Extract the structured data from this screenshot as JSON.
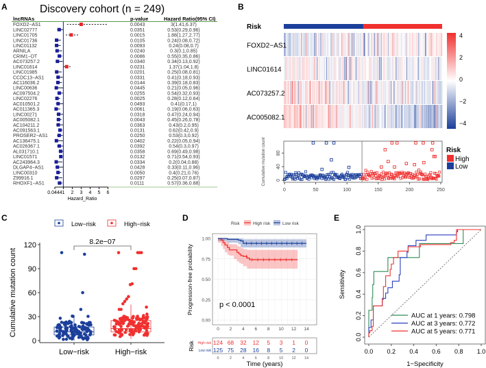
{
  "chart_data": [
    {
      "panel": "A",
      "type": "forest",
      "title": "Discovery cohort (n = 249)",
      "headers": {
        "name": "lncRNAs",
        "p": "p-value",
        "hr": "Hazard Ratio(95% CI)"
      },
      "xlabel": "Hazard_Ratio",
      "xticks": [
        "0.0444",
        "1",
        "2",
        "3",
        "4",
        "5",
        "6"
      ],
      "xtick_values": [
        0.0444,
        1,
        2,
        3,
        4,
        5,
        6
      ],
      "xlim": [
        0.0444,
        6
      ],
      "reference_line": 1,
      "colors": {
        "risk": "#e8262a",
        "protective": "#1a1f9c",
        "ref": "#2b3bbf",
        "rule": "#5a9a4a"
      },
      "rows": [
        {
          "name": "FOXD2−AS1",
          "p": "0.0043",
          "hr_text": "3(1.41,6.37)",
          "hr": 3,
          "lo": 1.41,
          "hi": 6.37
        },
        {
          "name": "LINC02777",
          "p": "0.0351",
          "hr_text": "0.53(0.29,0.96)",
          "hr": 0.53,
          "lo": 0.29,
          "hi": 0.96
        },
        {
          "name": "LINC01705",
          "p": "0.0015",
          "hr_text": "1.88(1.27,2.77)",
          "hr": 1.88,
          "lo": 1.27,
          "hi": 2.77
        },
        {
          "name": "LINC01736",
          "p": "0.0105",
          "hr_text": "0.24(0.08,0.72)",
          "hr": 0.24,
          "lo": 0.08,
          "hi": 0.72
        },
        {
          "name": "LINC01132",
          "p": "0.0093",
          "hr_text": "0.24(0.08,0.7)",
          "hr": 0.24,
          "lo": 0.08,
          "hi": 0.7
        },
        {
          "name": "ARNILA",
          "p": "0.0240",
          "hr_text": "0.3(0.1,0.85)",
          "hr": 0.3,
          "lo": 0.1,
          "hi": 0.85
        },
        {
          "name": "CRIM1−DT",
          "p": "0.0086",
          "hr_text": "0.55(0.35,0.86)",
          "hr": 0.55,
          "lo": 0.35,
          "hi": 0.86
        },
        {
          "name": "AC073257.2",
          "p": "0.0340",
          "hr_text": "0.34(0.13,0.92)",
          "hr": 0.34,
          "lo": 0.13,
          "hi": 0.92
        },
        {
          "name": "LINC01614",
          "p": "0.0231",
          "hr_text": "1.37(1.04,1.8)",
          "hr": 1.37,
          "lo": 1.04,
          "hi": 1.8
        },
        {
          "name": "LINC01985",
          "p": "0.0201",
          "hr_text": "0.25(0.08,0.81)",
          "hr": 0.25,
          "lo": 0.08,
          "hi": 0.81
        },
        {
          "name": "CCDC13−AS1",
          "p": "0.0331",
          "hr_text": "0.41(0.18,0.93)",
          "hr": 0.41,
          "lo": 0.18,
          "hi": 0.93
        },
        {
          "name": "AC116036.2",
          "p": "0.0144",
          "hr_text": "0.39(0.18,0.83)",
          "hr": 0.39,
          "lo": 0.18,
          "hi": 0.83
        },
        {
          "name": "LINC00636",
          "p": "0.0445",
          "hr_text": "0.21(0.05,0.96)",
          "hr": 0.21,
          "lo": 0.05,
          "hi": 0.96
        },
        {
          "name": "AC097504.2",
          "p": "0.0255",
          "hr_text": "0.54(0.32,0.93)",
          "hr": 0.54,
          "lo": 0.32,
          "hi": 0.93
        },
        {
          "name": "LINC02276",
          "p": "0.0025",
          "hr_text": "0.28(0.12,0.64)",
          "hr": 0.28,
          "lo": 0.12,
          "hi": 0.64
        },
        {
          "name": "AC010501.2",
          "p": "0.0493",
          "hr_text": "0.41(0.17,1)",
          "hr": 0.41,
          "lo": 0.17,
          "hi": 1
        },
        {
          "name": "AC011365.3",
          "p": "0.0061",
          "hr_text": "0.19(0.06,0.63)",
          "hr": 0.19,
          "lo": 0.06,
          "hi": 0.63
        },
        {
          "name": "LINC00271",
          "p": "0.0318",
          "hr_text": "0.47(0.24,0.94)",
          "hr": 0.47,
          "lo": 0.24,
          "hi": 0.94
        },
        {
          "name": "AC005082.1",
          "p": "0.0043",
          "hr_text": "0.45(0.26,0.78)",
          "hr": 0.45,
          "lo": 0.26,
          "hi": 0.78
        },
        {
          "name": "AC104211.2",
          "p": "0.0363",
          "hr_text": "0.43(0.2,0.95)",
          "hr": 0.43,
          "lo": 0.2,
          "hi": 0.95
        },
        {
          "name": "AC091563.1",
          "p": "0.0131",
          "hr_text": "0.62(0.42,0.9)",
          "hr": 0.62,
          "lo": 0.42,
          "hi": 0.9
        },
        {
          "name": "PROSER2−AS1",
          "p": "0.0250",
          "hr_text": "0.53(0.3,0.92)",
          "hr": 0.53,
          "lo": 0.3,
          "hi": 0.92
        },
        {
          "name": "AC136475.1",
          "p": "0.0402",
          "hr_text": "0.22(0.05,0.94)",
          "hr": 0.22,
          "lo": 0.05,
          "hi": 0.94
        },
        {
          "name": "AC026367.1",
          "p": "0.0392",
          "hr_text": "0.54(0.3,0.97)",
          "hr": 0.54,
          "lo": 0.3,
          "hi": 0.97
        },
        {
          "name": "AL031710.1",
          "p": "0.0358",
          "hr_text": "0.69(0.49,0.98)",
          "hr": 0.69,
          "lo": 0.49,
          "hi": 0.98
        },
        {
          "name": "LINC01571",
          "p": "0.0132",
          "hr_text": "0.71(0.54,0.93)",
          "hr": 0.71,
          "lo": 0.54,
          "hi": 0.93
        },
        {
          "name": "AC243964.3",
          "p": "0.0334",
          "hr_text": "0.2(0.04,0.88)",
          "hr": 0.2,
          "lo": 0.04,
          "hi": 0.88
        },
        {
          "name": "DLGAP4−AS1",
          "p": "0.0428",
          "hr_text": "0.33(0.11,0.96)",
          "hr": 0.33,
          "lo": 0.11,
          "hi": 0.96
        },
        {
          "name": "LINC00310",
          "p": "0.0050",
          "hr_text": "0.4(0.21,0.76)",
          "hr": 0.4,
          "lo": 0.21,
          "hi": 0.76
        },
        {
          "name": "Z99916.1",
          "p": "0.0297",
          "hr_text": "0.25(0.07,0.87)",
          "hr": 0.25,
          "lo": 0.07,
          "hi": 0.87
        },
        {
          "name": "RHOXF1−AS1",
          "p": "0.0111",
          "hr_text": "0.57(0.36,0.88)",
          "hr": 0.57,
          "lo": 0.36,
          "hi": 0.88
        }
      ]
    },
    {
      "panel": "B",
      "type": "heatmap",
      "annotation_label": "Risk",
      "rows": [
        "FOXD2−AS1",
        "LINC01614",
        "AC073257.2",
        "AC005082.1"
      ],
      "n_samples": 249,
      "low_risk_count": 125,
      "high_risk_count": 124,
      "colorbar_ticks": [
        "4",
        "2",
        "0",
        "−2",
        "−4"
      ],
      "colorbar_range": [
        -4,
        4
      ],
      "colors": {
        "high": "#f0302f",
        "low": "#1b3f9a",
        "mid": "#ffffff"
      },
      "row_trend": [
        {
          "name": "FOXD2−AS1",
          "low_group_mean": -0.6,
          "high_group_mean": 0.6
        },
        {
          "name": "LINC01614",
          "low_group_mean": 0.1,
          "high_group_mean": -0.1
        },
        {
          "name": "AC073257.2",
          "low_group_mean": 0.6,
          "high_group_mean": -0.6
        },
        {
          "name": "AC005082.1",
          "low_group_mean": 1.0,
          "high_group_mean": -1.3
        }
      ]
    },
    {
      "panel": "B-scatter",
      "type": "scatter",
      "ylabel": "Cumulative mutation count",
      "xlabel": "",
      "xticks": [
        "0",
        "50",
        "100",
        "150",
        "200",
        "250"
      ],
      "yticks": [
        "0",
        "40",
        "80"
      ],
      "xlim": [
        0,
        250
      ],
      "ylim": [
        0,
        115
      ],
      "split_at": 124,
      "legend": {
        "title": "Risk",
        "items": [
          {
            "label": "High",
            "color": "#f0302f"
          },
          {
            "label": "Low",
            "color": "#1b3f9a"
          }
        ]
      },
      "outliers": [
        {
          "x": 46,
          "y": 110,
          "group": "Low"
        },
        {
          "x": 67,
          "y": 110,
          "group": "Low"
        },
        {
          "x": 79,
          "y": 110,
          "group": "Low"
        },
        {
          "x": 75,
          "y": 60,
          "group": "Low"
        },
        {
          "x": 103,
          "y": 38,
          "group": "Low"
        },
        {
          "x": 60,
          "y": 32,
          "group": "Low"
        },
        {
          "x": 172,
          "y": 110,
          "group": "High"
        },
        {
          "x": 180,
          "y": 110,
          "group": "High"
        },
        {
          "x": 210,
          "y": 110,
          "group": "High"
        },
        {
          "x": 222,
          "y": 110,
          "group": "High"
        },
        {
          "x": 237,
          "y": 110,
          "group": "High"
        },
        {
          "x": 161,
          "y": 90,
          "group": "High"
        },
        {
          "x": 236,
          "y": 90,
          "group": "High"
        },
        {
          "x": 239,
          "y": 70,
          "group": "High"
        },
        {
          "x": 241,
          "y": 70,
          "group": "High"
        },
        {
          "x": 166,
          "y": 55,
          "group": "High"
        },
        {
          "x": 223,
          "y": 52,
          "group": "High"
        },
        {
          "x": 195,
          "y": 49,
          "group": "High"
        },
        {
          "x": 208,
          "y": 46,
          "group": "High"
        },
        {
          "x": 155,
          "y": 39,
          "group": "High"
        },
        {
          "x": 176,
          "y": 39,
          "group": "High"
        }
      ]
    },
    {
      "panel": "C",
      "type": "box",
      "ylabel": "Cumulative mutation count",
      "categories": [
        "Low−risk",
        "High−risk"
      ],
      "legend": [
        "Low−risk",
        "High−risk"
      ],
      "yticks": [
        "0",
        "30",
        "60",
        "90",
        "120"
      ],
      "ylim": [
        0,
        120
      ],
      "p_value_label": "8.2e−07",
      "colors": {
        "low": "#1b3f9a",
        "high": "#f0302f"
      },
      "boxes": [
        {
          "name": "Low−risk",
          "q1": 7,
          "median": 11,
          "q3": 17,
          "whisker_low": 0,
          "whisker_high": 32
        },
        {
          "name": "High−risk",
          "q1": 11,
          "median": 15,
          "q3": 25,
          "whisker_low": 2,
          "whisker_high": 45
        }
      ],
      "outliers": {
        "Low−risk": [
          110,
          108,
          60,
          39
        ],
        "High−risk": [
          110,
          110,
          110,
          110,
          90,
          90,
          71,
          70,
          55,
          52,
          49,
          46,
          39,
          39
        ]
      }
    },
    {
      "panel": "D",
      "type": "line",
      "subtype": "kaplan-meier",
      "ylabel": "Progression-free probability",
      "xlabel": "Time (years)",
      "legend_title": "Risk",
      "legend": [
        "High risk",
        "Low risk"
      ],
      "xticks": [
        "0",
        "2",
        "4",
        "6",
        "8",
        "10",
        "12",
        "14"
      ],
      "yticks": [
        "0.00",
        "0.25",
        "0.50",
        "0.75",
        "1.00"
      ],
      "xlim": [
        0,
        14
      ],
      "ylim": [
        0,
        1
      ],
      "p_value_label": "p < 0.0001",
      "colors": {
        "high": "#f0302f",
        "low": "#1b3f9a"
      },
      "series": [
        {
          "name": "High risk",
          "x": [
            0,
            0.5,
            0.8,
            1.1,
            1.5,
            1.8,
            2.5,
            3.0,
            3.3,
            3.6,
            4.0,
            4.6,
            5.0,
            12.6
          ],
          "y": [
            1.0,
            0.98,
            0.95,
            0.92,
            0.89,
            0.86,
            0.86,
            0.83,
            0.81,
            0.79,
            0.78,
            0.76,
            0.74,
            0.74
          ],
          "ci_lo": [
            1.0,
            0.95,
            0.91,
            0.87,
            0.83,
            0.8,
            0.79,
            0.75,
            0.72,
            0.7,
            0.69,
            0.66,
            0.63,
            0.63
          ],
          "ci_hi": [
            1.0,
            1.0,
            0.99,
            0.97,
            0.95,
            0.93,
            0.93,
            0.91,
            0.9,
            0.88,
            0.87,
            0.86,
            0.86,
            0.86
          ]
        },
        {
          "name": "Low risk",
          "x": [
            0,
            1.5,
            3.2,
            3.6,
            4.0,
            14.0
          ],
          "y": [
            1.0,
            0.99,
            0.98,
            0.97,
            0.94,
            0.94
          ],
          "ci_lo": [
            1.0,
            0.97,
            0.95,
            0.93,
            0.89,
            0.89
          ],
          "ci_hi": [
            1.0,
            1.0,
            1.0,
            1.0,
            0.99,
            0.99
          ]
        }
      ],
      "risk_table": {
        "title": "Risk",
        "rows": [
          {
            "label": "High risk",
            "counts": [
              "124",
              "68",
              "32",
              "12",
              "5",
              "3",
              "1",
              "0"
            ]
          },
          {
            "label": "Low risk",
            "counts": [
              "125",
              "75",
              "28",
              "16",
              "8",
              "5",
              "2",
              "0"
            ]
          }
        ]
      }
    },
    {
      "panel": "E",
      "type": "line",
      "subtype": "roc",
      "xlabel": "1−Specificity",
      "ylabel": "Sensitivity",
      "xticks": [
        "0.0",
        "0.2",
        "0.4",
        "0.6",
        "0.8",
        "1.0"
      ],
      "yticks": [
        "0.0",
        "0.2",
        "0.4",
        "0.6",
        "0.8",
        "1.0"
      ],
      "xlim": [
        0,
        1
      ],
      "ylim": [
        0,
        1
      ],
      "series": [
        {
          "name": "AUC at 1 years: 0.798",
          "color": "#2e8b57",
          "x": [
            0,
            0,
            0.03,
            0.03,
            0.035,
            0.035,
            0.045,
            0.045,
            0.17,
            0.17,
            0.45,
            0.45,
            0.84,
            0.84,
            1.0
          ],
          "y": [
            0,
            0.25,
            0.25,
            0.37,
            0.37,
            0.49,
            0.49,
            0.61,
            0.61,
            0.74,
            0.74,
            0.87,
            0.87,
            1.0,
            1.0
          ]
        },
        {
          "name": "AUC at 3 years: 0.772",
          "color": "#2b3fbf",
          "x": [
            0,
            0,
            0.02,
            0.02,
            0.04,
            0.04,
            0.12,
            0.12,
            0.15,
            0.15,
            0.17,
            0.17,
            0.21,
            0.21,
            0.27,
            0.27,
            0.28,
            0.28,
            0.34,
            0.34,
            0.35,
            0.35,
            0.42,
            0.42,
            0.51,
            0.51,
            0.78,
            0.78,
            0.79,
            0.79,
            1.0
          ],
          "y": [
            0,
            0.09,
            0.09,
            0.16,
            0.16,
            0.29,
            0.29,
            0.36,
            0.36,
            0.41,
            0.41,
            0.46,
            0.46,
            0.52,
            0.52,
            0.58,
            0.58,
            0.74,
            0.74,
            0.79,
            0.79,
            0.85,
            0.85,
            0.9,
            0.9,
            0.95,
            0.95,
            0.98,
            0.98,
            1.0,
            1.0
          ]
        },
        {
          "name": "AUC at 5 years: 0.771",
          "color": "#f0302f",
          "x": [
            0,
            0,
            0.01,
            0.01,
            0.03,
            0.03,
            0.04,
            0.04,
            0.12,
            0.12,
            0.13,
            0.13,
            0.15,
            0.15,
            0.19,
            0.19,
            0.2,
            0.2,
            0.22,
            0.22,
            0.26,
            0.26,
            0.35,
            0.35,
            0.46,
            0.46,
            0.73,
            0.73,
            0.76,
            0.76,
            0.78,
            0.78,
            1.0
          ],
          "y": [
            0,
            0.04,
            0.04,
            0.06,
            0.06,
            0.1,
            0.1,
            0.29,
            0.29,
            0.35,
            0.35,
            0.47,
            0.47,
            0.57,
            0.57,
            0.63,
            0.63,
            0.68,
            0.68,
            0.74,
            0.74,
            0.8,
            0.8,
            0.84,
            0.84,
            0.86,
            0.86,
            0.88,
            0.88,
            0.9,
            0.9,
            1.0,
            1.0
          ]
        }
      ]
    }
  ],
  "panel_labels": [
    "A",
    "B",
    "C",
    "D",
    "E"
  ]
}
